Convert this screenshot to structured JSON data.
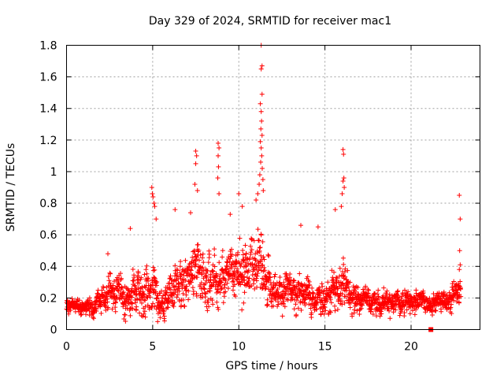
{
  "chart_data": {
    "type": "scatter",
    "title": "Day 329 of 2024, SRMTID for receiver mac1",
    "xlabel": "GPS time / hours",
    "ylabel": "SRMTID / TECUs",
    "xlim": [
      0,
      24
    ],
    "ylim": [
      0,
      1.8
    ],
    "grid": true,
    "marker": "+",
    "color": "#ff0000",
    "xticks": [
      {
        "value": 0,
        "label": "0"
      },
      {
        "value": 5,
        "label": "5"
      },
      {
        "value": 10,
        "label": "10"
      },
      {
        "value": 15,
        "label": "15"
      },
      {
        "value": 20,
        "label": "20"
      }
    ],
    "yticks": [
      {
        "value": 0,
        "label": "0"
      },
      {
        "value": 0.2,
        "label": "0.2"
      },
      {
        "value": 0.4,
        "label": "0.4"
      },
      {
        "value": 0.6,
        "label": "0.6"
      },
      {
        "value": 0.8,
        "label": "0.8"
      },
      {
        "value": 1.0,
        "label": "1"
      },
      {
        "value": 1.2,
        "label": "1.2"
      },
      {
        "value": 1.4,
        "label": "1.4"
      },
      {
        "value": 1.6,
        "label": "1.6"
      },
      {
        "value": 1.8,
        "label": "1.8"
      }
    ],
    "envelope": {
      "hours": [
        0.0,
        0.5,
        1.0,
        1.5,
        2.0,
        2.5,
        3.0,
        3.5,
        4.0,
        4.5,
        5.0,
        5.3,
        5.6,
        6.0,
        6.5,
        7.0,
        7.5,
        8.0,
        8.5,
        9.0,
        9.5,
        10.0,
        10.5,
        11.0,
        11.3,
        11.6,
        12.0,
        12.5,
        13.0,
        13.5,
        14.0,
        14.5,
        15.0,
        15.5,
        16.0,
        16.5,
        17.0,
        17.5,
        18.0,
        18.5,
        19.0,
        19.5,
        20.0,
        20.5,
        21.0,
        21.5,
        22.0,
        22.5,
        22.9
      ],
      "center": [
        0.15,
        0.16,
        0.13,
        0.15,
        0.18,
        0.22,
        0.25,
        0.24,
        0.26,
        0.25,
        0.3,
        0.2,
        0.16,
        0.24,
        0.3,
        0.34,
        0.36,
        0.34,
        0.32,
        0.3,
        0.32,
        0.38,
        0.4,
        0.45,
        0.42,
        0.32,
        0.26,
        0.24,
        0.26,
        0.24,
        0.22,
        0.2,
        0.22,
        0.24,
        0.3,
        0.2,
        0.22,
        0.19,
        0.18,
        0.17,
        0.18,
        0.17,
        0.16,
        0.17,
        0.17,
        0.18,
        0.19,
        0.22,
        0.24
      ],
      "spread": [
        0.05,
        0.06,
        0.05,
        0.08,
        0.1,
        0.12,
        0.14,
        0.15,
        0.16,
        0.18,
        0.22,
        0.14,
        0.12,
        0.16,
        0.18,
        0.2,
        0.22,
        0.22,
        0.22,
        0.2,
        0.2,
        0.22,
        0.22,
        0.26,
        0.24,
        0.2,
        0.14,
        0.13,
        0.14,
        0.14,
        0.14,
        0.12,
        0.14,
        0.16,
        0.2,
        0.12,
        0.12,
        0.1,
        0.1,
        0.09,
        0.09,
        0.09,
        0.09,
        0.08,
        0.08,
        0.09,
        0.09,
        0.1,
        0.1
      ],
      "samples_per_hour": 90,
      "seed": 20241124
    },
    "highlights": [
      {
        "x": 4.95,
        "y": 0.9
      },
      {
        "x": 4.98,
        "y": 0.86
      },
      {
        "x": 5.02,
        "y": 0.84
      },
      {
        "x": 5.08,
        "y": 0.8
      },
      {
        "x": 5.12,
        "y": 0.78
      },
      {
        "x": 5.2,
        "y": 0.7
      },
      {
        "x": 7.5,
        "y": 1.13
      },
      {
        "x": 7.55,
        "y": 1.1
      },
      {
        "x": 7.5,
        "y": 1.05
      },
      {
        "x": 7.45,
        "y": 0.92
      },
      {
        "x": 7.6,
        "y": 0.88
      },
      {
        "x": 8.8,
        "y": 1.18
      },
      {
        "x": 8.85,
        "y": 1.15
      },
      {
        "x": 8.8,
        "y": 1.1
      },
      {
        "x": 8.82,
        "y": 1.03
      },
      {
        "x": 8.78,
        "y": 0.96
      },
      {
        "x": 8.85,
        "y": 0.86
      },
      {
        "x": 10.0,
        "y": 0.86
      },
      {
        "x": 10.2,
        "y": 0.78
      },
      {
        "x": 11.3,
        "y": 1.8
      },
      {
        "x": 11.35,
        "y": 1.67
      },
      {
        "x": 11.3,
        "y": 1.65
      },
      {
        "x": 11.35,
        "y": 1.49
      },
      {
        "x": 11.25,
        "y": 1.43
      },
      {
        "x": 11.3,
        "y": 1.38
      },
      {
        "x": 11.32,
        "y": 1.32
      },
      {
        "x": 11.28,
        "y": 1.27
      },
      {
        "x": 11.35,
        "y": 1.23
      },
      {
        "x": 11.25,
        "y": 1.19
      },
      {
        "x": 11.3,
        "y": 1.15
      },
      {
        "x": 11.33,
        "y": 1.1
      },
      {
        "x": 11.27,
        "y": 1.06
      },
      {
        "x": 11.36,
        "y": 1.02
      },
      {
        "x": 11.22,
        "y": 0.98
      },
      {
        "x": 11.4,
        "y": 0.95
      },
      {
        "x": 11.18,
        "y": 0.92
      },
      {
        "x": 11.42,
        "y": 0.88
      },
      {
        "x": 11.1,
        "y": 0.86
      },
      {
        "x": 11.0,
        "y": 0.82
      },
      {
        "x": 16.05,
        "y": 1.14
      },
      {
        "x": 16.08,
        "y": 1.11
      },
      {
        "x": 16.1,
        "y": 0.96
      },
      {
        "x": 16.05,
        "y": 0.94
      },
      {
        "x": 16.12,
        "y": 0.9
      },
      {
        "x": 16.0,
        "y": 0.86
      },
      {
        "x": 15.95,
        "y": 0.78
      },
      {
        "x": 15.6,
        "y": 0.76
      },
      {
        "x": 22.8,
        "y": 0.85
      },
      {
        "x": 22.85,
        "y": 0.7
      },
      {
        "x": 22.82,
        "y": 0.5
      },
      {
        "x": 22.85,
        "y": 0.41
      },
      {
        "x": 22.8,
        "y": 0.38
      },
      {
        "x": 3.7,
        "y": 0.64
      },
      {
        "x": 6.3,
        "y": 0.76
      },
      {
        "x": 7.2,
        "y": 0.74
      },
      {
        "x": 9.5,
        "y": 0.73
      },
      {
        "x": 13.6,
        "y": 0.66
      },
      {
        "x": 14.6,
        "y": 0.65
      },
      {
        "x": 2.4,
        "y": 0.48
      }
    ],
    "square_marker": {
      "x": 21.15,
      "y": 0.0
    }
  }
}
